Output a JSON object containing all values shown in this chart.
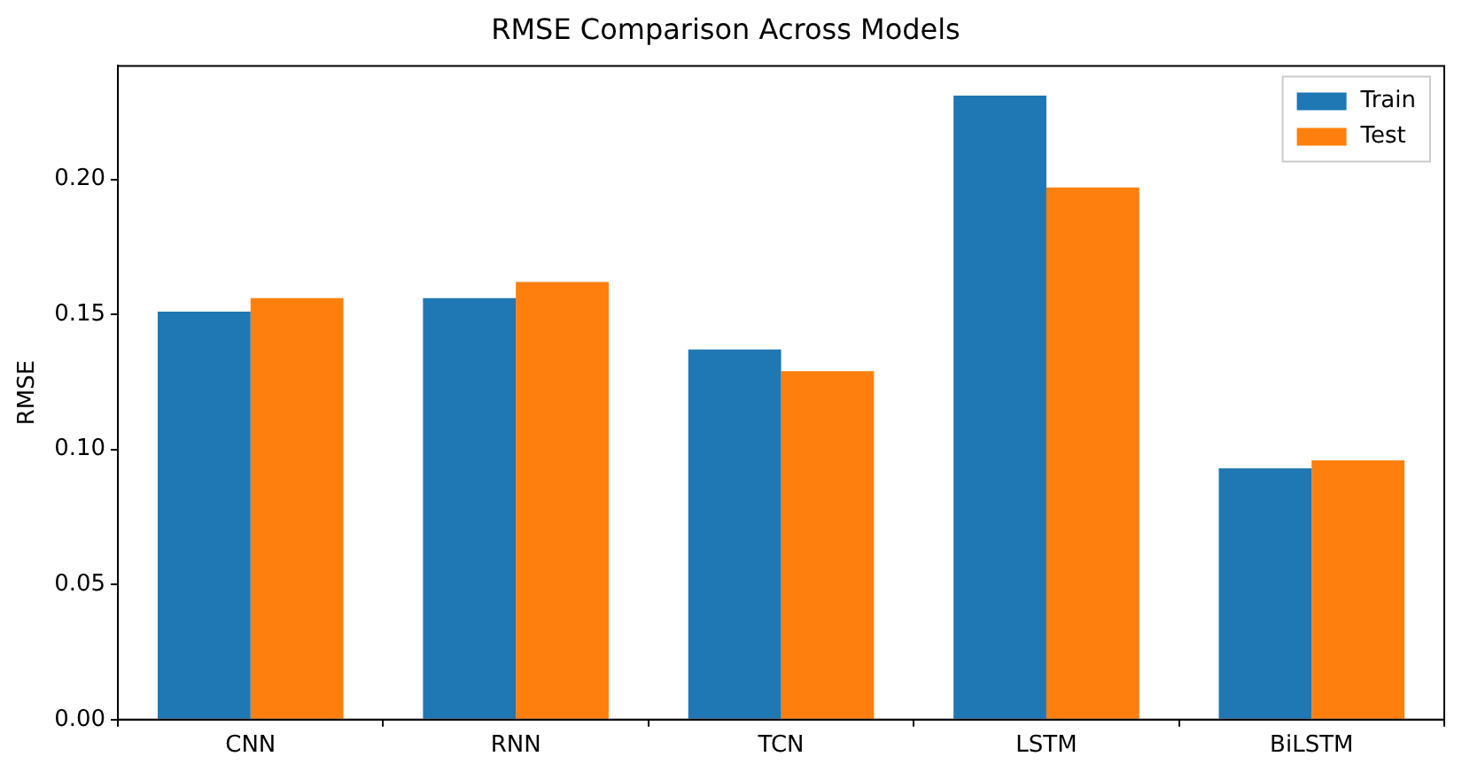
{
  "chart_data": {
    "type": "bar",
    "title": "RMSE Comparison Across Models",
    "ylabel": "RMSE",
    "categories": [
      "CNN",
      "RNN",
      "TCN",
      "LSTM",
      "BiLSTM"
    ],
    "series": [
      {
        "name": "Train",
        "color": "#1f77b4",
        "values": [
          0.151,
          0.156,
          0.137,
          0.231,
          0.093
        ]
      },
      {
        "name": "Test",
        "color": "#ff7f0e",
        "values": [
          0.156,
          0.162,
          0.129,
          0.197,
          0.096
        ]
      }
    ],
    "ylim": [
      0,
      0.242
    ],
    "yticks": [
      {
        "value": 0,
        "label": "0.00"
      },
      {
        "value": 0.05,
        "label": "0.05"
      },
      {
        "value": 0.1,
        "label": "0.10"
      },
      {
        "value": 0.15,
        "label": "0.15"
      },
      {
        "value": 0.2,
        "label": "0.20"
      }
    ],
    "grid": false,
    "legend": "top right"
  }
}
